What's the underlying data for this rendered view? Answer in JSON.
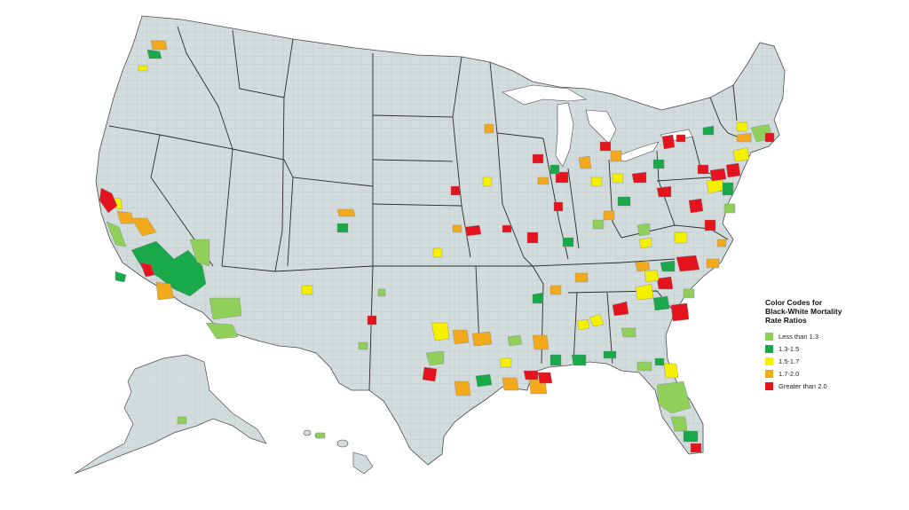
{
  "colors": {
    "background": "#ffffff",
    "land": "#d3dcdc",
    "county_lines": "#8f9a9a",
    "state_lines": "#2b2b2b"
  },
  "legend": {
    "title": "Color Codes for\nBlack-White Mortality\nRate Ratios",
    "items": [
      {
        "label": "Less than 1.3",
        "color": "#8fcf5a",
        "category": "lt13"
      },
      {
        "label": "1.3-1.5",
        "color": "#19a84a",
        "category": "13_15"
      },
      {
        "label": "1.5-1.7",
        "color": "#f4f000",
        "category": "15_17"
      },
      {
        "label": "1.7-2.0",
        "color": "#f3a91c",
        "category": "17_20"
      },
      {
        "label": "Greater than 2.0",
        "color": "#e4131e",
        "category": "gt20"
      }
    ]
  },
  "regions": {
    "lower48": "contiguous-us",
    "alaska": "alaska",
    "hawaii": "hawaii"
  }
}
